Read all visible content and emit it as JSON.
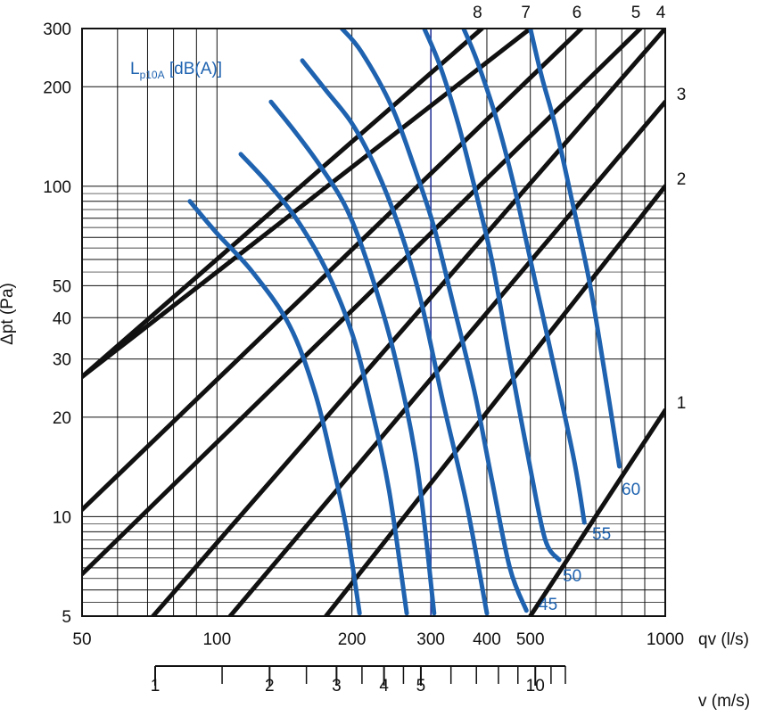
{
  "chart_data": {
    "type": "line",
    "title": "",
    "xlabel": "qv (l/s)",
    "ylabel": "Δpt (Pa)",
    "x_scale": "log",
    "y_scale": "log",
    "xlim": [
      50,
      1000
    ],
    "ylim": [
      5,
      300
    ],
    "grid": true,
    "x_ticks": [
      {
        "value": 50,
        "label": "50"
      },
      {
        "value": 100,
        "label": "100"
      },
      {
        "value": 200,
        "label": "200"
      },
      {
        "value": 300,
        "label": "300"
      },
      {
        "value": 400,
        "label": "400"
      },
      {
        "value": 500,
        "label": "500"
      },
      {
        "value": 1000,
        "label": "1000"
      }
    ],
    "y_ticks": [
      {
        "value": 5,
        "label": "5"
      },
      {
        "value": 10,
        "label": "10"
      },
      {
        "value": 20,
        "label": "20"
      },
      {
        "value": 30,
        "label": "30"
      },
      {
        "value": 40,
        "label": "40"
      },
      {
        "value": 50,
        "label": "50"
      },
      {
        "value": 100,
        "label": "100"
      },
      {
        "value": 200,
        "label": "200"
      },
      {
        "value": 300,
        "label": "300"
      }
    ],
    "secondary_axis": {
      "label": "v (m/s)",
      "scale": "log",
      "range": [
        1,
        12
      ],
      "ticks": [
        {
          "value": 1,
          "label": "1"
        },
        {
          "value": 2,
          "label": "2"
        },
        {
          "value": 3,
          "label": "3"
        },
        {
          "value": 4,
          "label": "4"
        },
        {
          "value": 5,
          "label": "5"
        },
        {
          "value": 10,
          "label": "10"
        }
      ],
      "minor_ticks": [
        1.5,
        2.5,
        3.5,
        4.5,
        6,
        7,
        8,
        9,
        11,
        12
      ]
    },
    "reference_line_x": 300,
    "size_lines": [
      {
        "label": "1",
        "points": [
          [
            500,
            5
          ],
          [
            1000,
            21
          ]
        ]
      },
      {
        "label": "2",
        "points": [
          [
            175,
            5
          ],
          [
            1000,
            100
          ]
        ]
      },
      {
        "label": "3",
        "points": [
          [
            107,
            5
          ],
          [
            1000,
            180
          ]
        ]
      },
      {
        "label": "4",
        "points": [
          [
            72,
            5
          ],
          [
            1000,
            300
          ]
        ]
      },
      {
        "label": "5",
        "points": [
          [
            50,
            6.7
          ],
          [
            880,
            300
          ]
        ]
      },
      {
        "label": "6",
        "points": [
          [
            50,
            10.5
          ],
          [
            650,
            300
          ]
        ]
      },
      {
        "label": "7",
        "points": [
          [
            50,
            26.5
          ],
          [
            500,
            300
          ]
        ]
      },
      {
        "label": "8",
        "points": [
          [
            50,
            26.5
          ],
          [
            390,
            300
          ]
        ]
      }
    ],
    "series": [
      {
        "name": "45",
        "points": [
          [
            87,
            90
          ],
          [
            100,
            72
          ],
          [
            120,
            55
          ],
          [
            145,
            38
          ],
          [
            165,
            24
          ],
          [
            180,
            15
          ],
          [
            195,
            9
          ],
          [
            208,
            5.1
          ]
        ]
      },
      {
        "name": "50",
        "points": [
          [
            113,
            125
          ],
          [
            130,
            102
          ],
          [
            150,
            80
          ],
          [
            175,
            56
          ],
          [
            200,
            36
          ],
          [
            220,
            22
          ],
          [
            242,
            12
          ],
          [
            265,
            5.1
          ]
        ]
      },
      {
        "name": "55",
        "points": [
          [
            132,
            180
          ],
          [
            150,
            145
          ],
          [
            170,
            115
          ],
          [
            195,
            85
          ],
          [
            220,
            55
          ],
          [
            250,
            30
          ],
          [
            280,
            14
          ],
          [
            305,
            5.1
          ]
        ]
      },
      {
        "name": "60",
        "points": [
          [
            155,
            240
          ],
          [
            175,
            195
          ],
          [
            200,
            155
          ],
          [
            225,
            115
          ],
          [
            255,
            75
          ],
          [
            285,
            45
          ],
          [
            320,
            22
          ],
          [
            360,
            11
          ],
          [
            400,
            5.1
          ]
        ]
      },
      {
        "name": "",
        "points": [
          [
            190,
            300
          ],
          [
            210,
            255
          ],
          [
            245,
            175
          ],
          [
            275,
            115
          ],
          [
            305,
            75
          ],
          [
            335,
            45
          ],
          [
            375,
            24
          ],
          [
            410,
            13
          ],
          [
            450,
            7
          ],
          [
            490,
            5.2
          ]
        ]
      },
      {
        "name": "",
        "points": [
          [
            290,
            300
          ],
          [
            315,
            230
          ],
          [
            345,
            155
          ],
          [
            375,
            100
          ],
          [
            410,
            60
          ],
          [
            450,
            30
          ],
          [
            500,
            14
          ],
          [
            540,
            8.5
          ],
          [
            580,
            7.4
          ]
        ]
      },
      {
        "name": "",
        "points": [
          [
            355,
            300
          ],
          [
            380,
            240
          ],
          [
            420,
            160
          ],
          [
            460,
            100
          ],
          [
            500,
            60
          ],
          [
            560,
            30
          ],
          [
            625,
            15
          ],
          [
            660,
            9.6
          ]
        ]
      },
      {
        "name": "",
        "points": [
          [
            500,
            300
          ],
          [
            530,
            215
          ],
          [
            570,
            150
          ],
          [
            620,
            90
          ],
          [
            680,
            50
          ],
          [
            740,
            25
          ],
          [
            790,
            14.2
          ]
        ]
      }
    ],
    "legend": {
      "title": "Lp10A [dB(A)]",
      "title_main": "L",
      "title_sub": "p10A",
      "title_rest": " [dB(A)]",
      "placement": "top-left"
    },
    "colors": {
      "size_lines": "#111111",
      "noise_curves": "#1f63b0",
      "reference_line": "#2c3a9c",
      "grid": "#111111"
    }
  }
}
